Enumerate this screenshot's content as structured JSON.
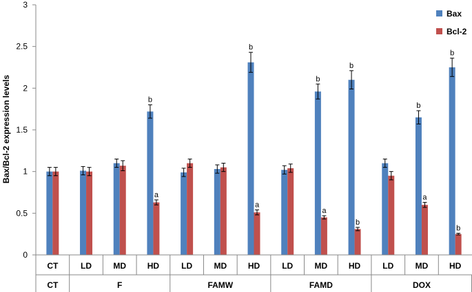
{
  "chart_data": {
    "type": "bar",
    "ylabel": "Bax/Bcl-2 expression levels",
    "ylim": [
      0,
      3
    ],
    "yticks": [
      "0",
      "0.5",
      "1",
      "1.5",
      "2",
      "2.5",
      "3"
    ],
    "grid": false,
    "legend_position": "top-right",
    "groups": [
      {
        "name": "CT",
        "categories": [
          "CT"
        ]
      },
      {
        "name": "F",
        "categories": [
          "LD",
          "MD",
          "HD"
        ]
      },
      {
        "name": "FAMW",
        "categories": [
          "LD",
          "MD",
          "HD"
        ]
      },
      {
        "name": "FAMD",
        "categories": [
          "LD",
          "MD",
          "HD"
        ]
      },
      {
        "name": "DOX",
        "categories": [
          "LD",
          "MD",
          "HD"
        ]
      }
    ],
    "series": [
      {
        "name": "Bax",
        "color": "#4f81bd",
        "values": [
          1.0,
          1.01,
          1.1,
          1.72,
          0.99,
          1.03,
          2.31,
          1.02,
          1.96,
          2.1,
          1.1,
          1.65,
          2.25
        ],
        "errors": [
          0.05,
          0.05,
          0.05,
          0.08,
          0.05,
          0.05,
          0.12,
          0.05,
          0.09,
          0.11,
          0.05,
          0.08,
          0.11
        ],
        "labels": [
          "",
          "",
          "",
          "b",
          "",
          "",
          "b",
          "",
          "b",
          "b",
          "",
          "b",
          "b"
        ]
      },
      {
        "name": "Bcl-2",
        "color": "#c0504d",
        "values": [
          1.0,
          1.0,
          1.07,
          0.63,
          1.1,
          1.05,
          0.51,
          1.04,
          0.45,
          0.31,
          0.95,
          0.6,
          0.25
        ],
        "errors": [
          0.05,
          0.05,
          0.06,
          0.03,
          0.05,
          0.05,
          0.03,
          0.05,
          0.02,
          0.02,
          0.05,
          0.03,
          0.01
        ],
        "labels": [
          "",
          "",
          "",
          "a",
          "",
          "",
          "a",
          "",
          "a",
          "b",
          "",
          "a",
          "b"
        ]
      }
    ]
  }
}
